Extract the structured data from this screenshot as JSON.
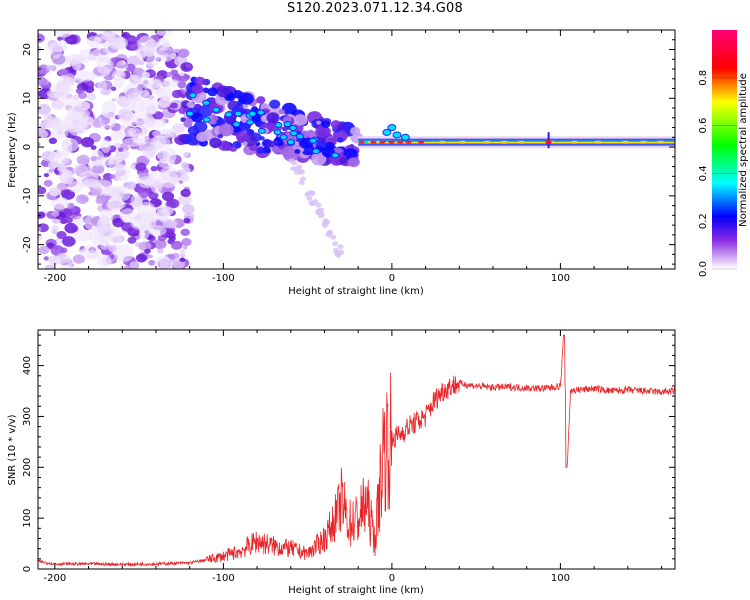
{
  "title": "S120.2023.071.12.34.G08",
  "colors": {
    "axis": "#000000",
    "snr_line": "#e8262a",
    "background": "#ffffff"
  },
  "chart_data": [
    {
      "type": "heatmap",
      "xlabel": "Height of straight line (km)",
      "ylabel": "Frequency (Hz)",
      "xlim": [
        -210,
        168
      ],
      "ylim": [
        -25,
        24
      ],
      "xticks": [
        -200,
        -100,
        0,
        100
      ],
      "yticks": [
        -20,
        -10,
        0,
        10,
        20
      ],
      "colorbar": {
        "label": "Normalized spectral amplitude",
        "range": [
          0,
          1
        ],
        "ticks": [
          "0.0",
          "0.2",
          "0.4",
          "0.6",
          "0.8"
        ],
        "colormap": [
          "#ffffff",
          "#8a2be2",
          "#0000ff",
          "#00ffff",
          "#00ff00",
          "#ffff00",
          "#ff0000",
          "#ff00aa"
        ]
      },
      "features": [
        {
          "description": "scattered noise blobs",
          "x_range": [
            -210,
            -130
          ],
          "y_range": [
            -25,
            24
          ],
          "amplitude": 0.15
        },
        {
          "description": "dispersive decreasing band",
          "x_range": [
            -125,
            -20
          ],
          "y_center": [
            8,
            0
          ],
          "amplitude": 0.3
        },
        {
          "description": "steady signal line",
          "x_range": [
            -20,
            168
          ],
          "y_center": 1,
          "amplitude": 0.55
        },
        {
          "description": "line spike",
          "x": 93,
          "amplitude": 0.9
        }
      ]
    },
    {
      "type": "line",
      "xlabel": "Height of straight line (km)",
      "ylabel": "SNR (10 * v/v)",
      "xlim": [
        -210,
        168
      ],
      "ylim": [
        0,
        470
      ],
      "xticks": [
        -200,
        -100,
        0,
        100
      ],
      "yticks": [
        0,
        100,
        200,
        300,
        400
      ],
      "series": [
        {
          "x": [
            -210,
            -200,
            -180,
            -160,
            -140,
            -120,
            -110,
            -100,
            -90,
            -80,
            -70,
            -60,
            -50,
            -40,
            -35,
            -30,
            -25,
            -20,
            -15,
            -10,
            -5,
            0,
            5,
            10,
            15,
            20,
            25,
            30,
            35,
            40,
            45,
            50,
            60,
            70,
            80,
            90,
            95,
            100,
            102,
            104,
            106,
            110,
            120,
            130,
            140,
            150,
            160,
            168
          ],
          "values": [
            15,
            10,
            10,
            9,
            10,
            12,
            18,
            25,
            35,
            55,
            45,
            40,
            30,
            60,
            90,
            130,
            90,
            100,
            130,
            55,
            240,
            255,
            265,
            280,
            290,
            300,
            330,
            350,
            360,
            365,
            362,
            360,
            357,
            358,
            356,
            355,
            357,
            360,
            460,
            200,
            350,
            352,
            355,
            350,
            352,
            350,
            348,
            350
          ]
        }
      ]
    }
  ]
}
